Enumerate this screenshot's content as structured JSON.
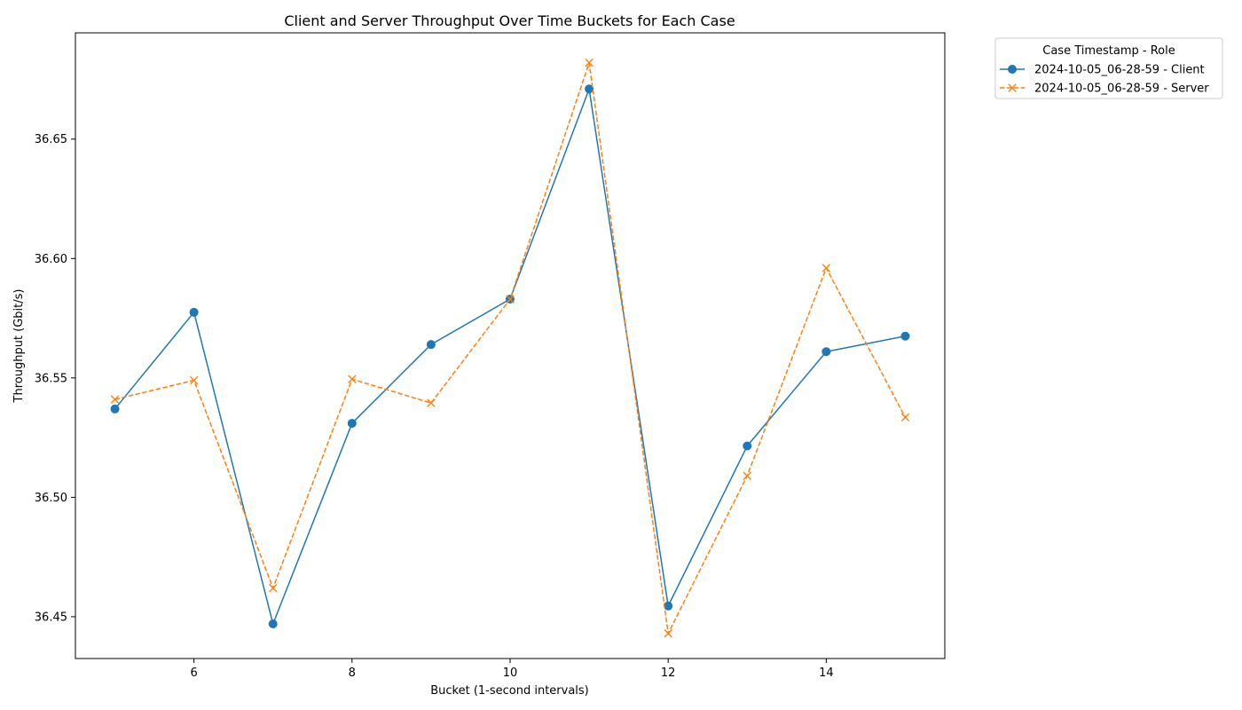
{
  "chart_data": {
    "type": "line",
    "title": "Client and Server Throughput Over Time Buckets for Each Case",
    "xlabel": "Bucket (1-second intervals)",
    "ylabel": "Throughput (Gbit/s)",
    "xlim": [
      4.5,
      15.5
    ],
    "ylim": [
      36.4325,
      36.6945
    ],
    "xticks": [
      6,
      8,
      10,
      12,
      14
    ],
    "xtick_labels": [
      "6",
      "8",
      "10",
      "12",
      "14"
    ],
    "yticks": [
      36.45,
      36.5,
      36.55,
      36.6,
      36.65
    ],
    "ytick_labels": [
      "36.45",
      "36.50",
      "36.55",
      "36.60",
      "36.65"
    ],
    "grid": false,
    "legend": {
      "title": "Case Timestamp - Role",
      "placement": "outside upper right"
    },
    "x": [
      5,
      6,
      7,
      8,
      9,
      10,
      11,
      12,
      13,
      14,
      15
    ],
    "series": [
      {
        "name": "2024-10-05_06-28-59 - Client",
        "color": "#1f77b4",
        "marker": "circle",
        "line_style": "solid",
        "values": [
          36.537,
          36.5775,
          36.447,
          36.531,
          36.564,
          36.583,
          36.671,
          36.4545,
          36.5215,
          36.561,
          36.5675
        ]
      },
      {
        "name": "2024-10-05_06-28-59 - Server",
        "color": "#ff7f0e",
        "marker": "x",
        "line_style": "dashed",
        "values": [
          36.541,
          36.549,
          36.462,
          36.5495,
          36.5395,
          36.583,
          36.682,
          36.443,
          36.509,
          36.596,
          36.5335
        ]
      }
    ]
  }
}
